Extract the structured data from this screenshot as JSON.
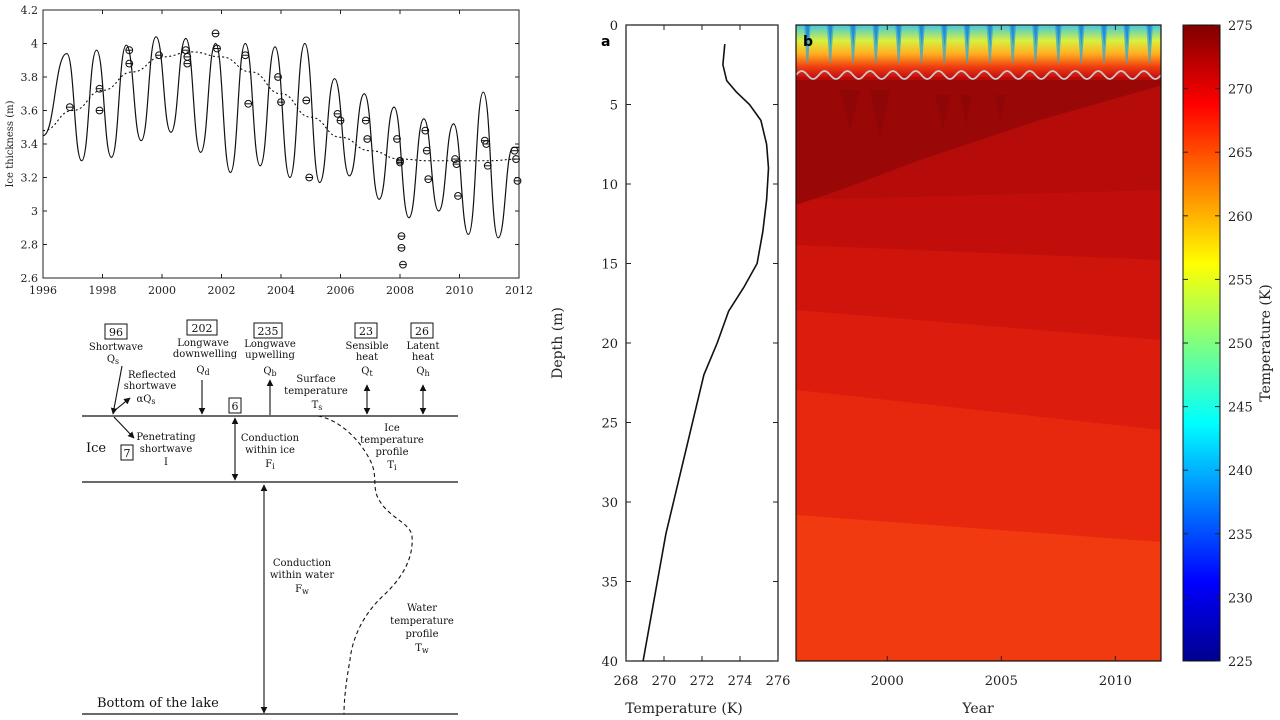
{
  "chart_data": [
    {
      "type": "line",
      "ylabel": "Ice thickness (m)",
      "xlim": [
        1996,
        2012
      ],
      "ylim": [
        2.6,
        4.2
      ],
      "xticks": [
        "1996",
        "1998",
        "2000",
        "2002",
        "2004",
        "2006",
        "2008",
        "2010",
        "2012"
      ],
      "yticks": [
        "2.6",
        "2.8",
        "3",
        "3.2",
        "3.4",
        "3.6",
        "3.8",
        "4",
        "4.2"
      ],
      "series": [
        {
          "style": "solid-oscillating",
          "x": [
            1996.0,
            1996.8,
            1997.3,
            1997.8,
            1998.3,
            1998.8,
            1999.3,
            1999.8,
            2000.3,
            2000.8,
            2001.3,
            2001.8,
            2002.3,
            2002.8,
            2003.3,
            2003.8,
            2004.3,
            2004.8,
            2005.3,
            2005.8,
            2006.3,
            2006.8,
            2007.3,
            2007.8,
            2008.3,
            2008.8,
            2009.3,
            2009.8,
            2010.3,
            2010.8,
            2011.3,
            2011.8,
            2012.0
          ],
          "y": [
            3.45,
            3.94,
            3.3,
            3.96,
            3.32,
            3.99,
            3.42,
            4.04,
            3.47,
            4.03,
            3.35,
            4.0,
            3.23,
            4.0,
            3.27,
            3.98,
            3.2,
            4.0,
            3.17,
            3.79,
            3.21,
            3.7,
            3.07,
            3.62,
            2.96,
            3.55,
            3.0,
            3.52,
            2.86,
            3.71,
            2.84,
            3.38,
            3.38
          ]
        },
        {
          "style": "dotted-trend",
          "x": [
            1996.0,
            1997,
            1998,
            1999,
            2000,
            2001,
            2002,
            2003,
            2004,
            2005,
            2006,
            2007,
            2008,
            2009,
            2010,
            2011,
            2012
          ],
          "y": [
            3.48,
            3.6,
            3.72,
            3.83,
            3.92,
            3.95,
            3.92,
            3.83,
            3.7,
            3.56,
            3.44,
            3.36,
            3.31,
            3.3,
            3.3,
            3.3,
            3.31
          ]
        },
        {
          "style": "observations",
          "x": [
            1996.9,
            1997.9,
            1997.9,
            1998.9,
            1998.9,
            1999.9,
            2000.8,
            2000.85,
            2000.85,
            2001.8,
            2001.85,
            2002.8,
            2002.9,
            2003.9,
            2004.0,
            2004.85,
            2004.95,
            2005.9,
            2006.0,
            2006.85,
            2006.9,
            2007.9,
            2008.0,
            2008.0,
            2008.05,
            2008.05,
            2008.1,
            2008.85,
            2008.9,
            2008.95,
            2009.85,
            2009.9,
            2009.95,
            2010.85,
            2010.9,
            2010.95,
            2011.85,
            2011.9,
            2011.95
          ],
          "y": [
            3.62,
            3.73,
            3.6,
            3.96,
            3.88,
            3.93,
            3.96,
            3.92,
            3.88,
            4.06,
            3.97,
            3.93,
            3.64,
            3.8,
            3.65,
            3.66,
            3.2,
            3.58,
            3.54,
            3.54,
            3.43,
            3.43,
            3.3,
            3.29,
            2.85,
            2.78,
            2.68,
            3.48,
            3.36,
            3.19,
            3.31,
            3.28,
            3.09,
            3.42,
            3.4,
            3.27,
            3.36,
            3.31,
            3.18
          ]
        }
      ]
    },
    {
      "type": "line",
      "panel_label": "a",
      "xlabel": "Temperature (K)",
      "ylabel": "Depth (m)",
      "xlim": [
        268,
        276
      ],
      "ylim": [
        0,
        40
      ],
      "y_inverted": true,
      "xticks": [
        "268",
        "270",
        "272",
        "274",
        "276"
      ],
      "yticks": [
        "0",
        "5",
        "10",
        "15",
        "20",
        "25",
        "30",
        "35",
        "40"
      ],
      "series": [
        {
          "x": [
            273.2,
            273.1,
            273.3,
            273.8,
            274.5,
            275.1,
            275.4,
            275.5,
            275.4,
            275.2,
            274.9,
            274.2,
            273.4,
            272.8,
            272.1,
            271.7,
            271.3,
            270.9,
            270.5,
            270.1,
            269.8,
            269.5,
            269.2,
            268.9
          ],
          "y": [
            1.2,
            2.5,
            3.5,
            4.2,
            5.0,
            6.0,
            7.5,
            9.0,
            11.0,
            13.0,
            15.0,
            16.5,
            18.0,
            20.0,
            22.0,
            24.0,
            26.0,
            28.0,
            30.0,
            32.0,
            34.0,
            36.0,
            38.0,
            40.0
          ]
        }
      ]
    },
    {
      "type": "heatmap",
      "panel_label": "b",
      "xlabel": "Year",
      "xlim": [
        1996,
        2012
      ],
      "ylim": [
        0,
        40
      ],
      "y_inverted": true,
      "xticks": [
        "2000",
        "2005",
        "2010"
      ],
      "colorbar_label": "Temperature (K)",
      "colorbar_range": [
        225,
        275
      ],
      "colorbar_ticks": [
        "225",
        "230",
        "235",
        "240",
        "245",
        "250",
        "255",
        "260",
        "265",
        "270",
        "275"
      ]
    }
  ],
  "diagram": {
    "ice_label": "Ice",
    "bottom_label": "Bottom of the lake",
    "fluxes": [
      {
        "value": "96",
        "name": "Shortwave",
        "symbol": "Q",
        "sub": "s"
      },
      {
        "value": "202",
        "name": "Longwave\ndownwelling",
        "symbol": "Q",
        "sub": "d"
      },
      {
        "value": "235",
        "name": "Longwave\nupwelling",
        "symbol": "Q",
        "sub": "b"
      },
      {
        "value": "23",
        "name": "Sensible\nheat",
        "symbol": "Q",
        "sub": "t"
      },
      {
        "value": "26",
        "name": "Latent\nheat",
        "symbol": "Q",
        "sub": "h"
      }
    ],
    "reflected": {
      "name": "Reflected\nshortwave",
      "symbol": "αQ",
      "sub": "s"
    },
    "surface_temp": {
      "name": "Surface\ntemperature",
      "symbol": "T",
      "sub": "s"
    },
    "penetrating": {
      "value": "7",
      "name": "Penetrating\nshortwave",
      "symbol": "I"
    },
    "conduction_ice": {
      "value": "6",
      "name": "Conduction\nwithin ice",
      "symbol": "F",
      "sub": "i"
    },
    "ice_profile": {
      "name": "Ice\ntemperature\nprofile",
      "symbol": "T",
      "sub": "i"
    },
    "conduction_water": {
      "name": "Conduction\nwithin water",
      "symbol": "F",
      "sub": "w"
    },
    "water_profile": {
      "name": "Water\ntemperature\nprofile",
      "symbol": "T",
      "sub": "w"
    }
  }
}
